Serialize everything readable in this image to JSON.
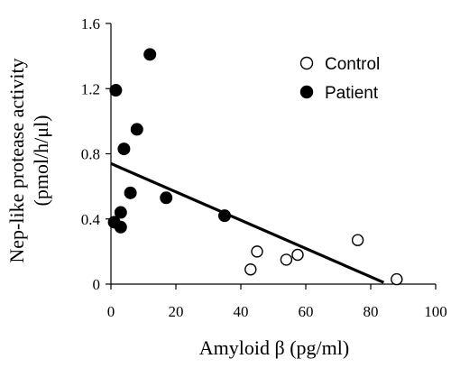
{
  "chart_data": {
    "type": "scatter",
    "xlabel": "Amyloid β (pg/ml)",
    "ylabel": "Nep-like protease activity",
    "ylabel_unit": "(pmol/h/μl)",
    "xlim": [
      0,
      100
    ],
    "ylim": [
      0,
      1.6
    ],
    "x_ticks": [
      0,
      20,
      40,
      60,
      80,
      100
    ],
    "y_ticks": [
      0,
      0.4,
      0.8,
      1.2,
      1.6
    ],
    "x_tick_labels": [
      "0",
      "20",
      "40",
      "60",
      "80",
      "100"
    ],
    "y_tick_labels": [
      "0",
      "0.4",
      "0.8",
      "1.2",
      "1.6"
    ],
    "grid": false,
    "legend_position": "top-right",
    "series": [
      {
        "name": "Control",
        "marker": "open-circle",
        "points": [
          [
            43,
            0.09
          ],
          [
            45,
            0.2
          ],
          [
            54,
            0.15
          ],
          [
            57.5,
            0.18
          ],
          [
            76,
            0.27
          ],
          [
            88,
            0.03
          ]
        ]
      },
      {
        "name": "Patient",
        "marker": "filled-circle",
        "points": [
          [
            1.5,
            1.19
          ],
          [
            12,
            1.41
          ],
          [
            8,
            0.95
          ],
          [
            4,
            0.83
          ],
          [
            6,
            0.56
          ],
          [
            17,
            0.53
          ],
          [
            35,
            0.42
          ],
          [
            3,
            0.44
          ],
          [
            1,
            0.38
          ],
          [
            3,
            0.35
          ]
        ]
      }
    ],
    "trendline": {
      "x": [
        0,
        84
      ],
      "y": [
        0.74,
        0.01
      ]
    }
  }
}
